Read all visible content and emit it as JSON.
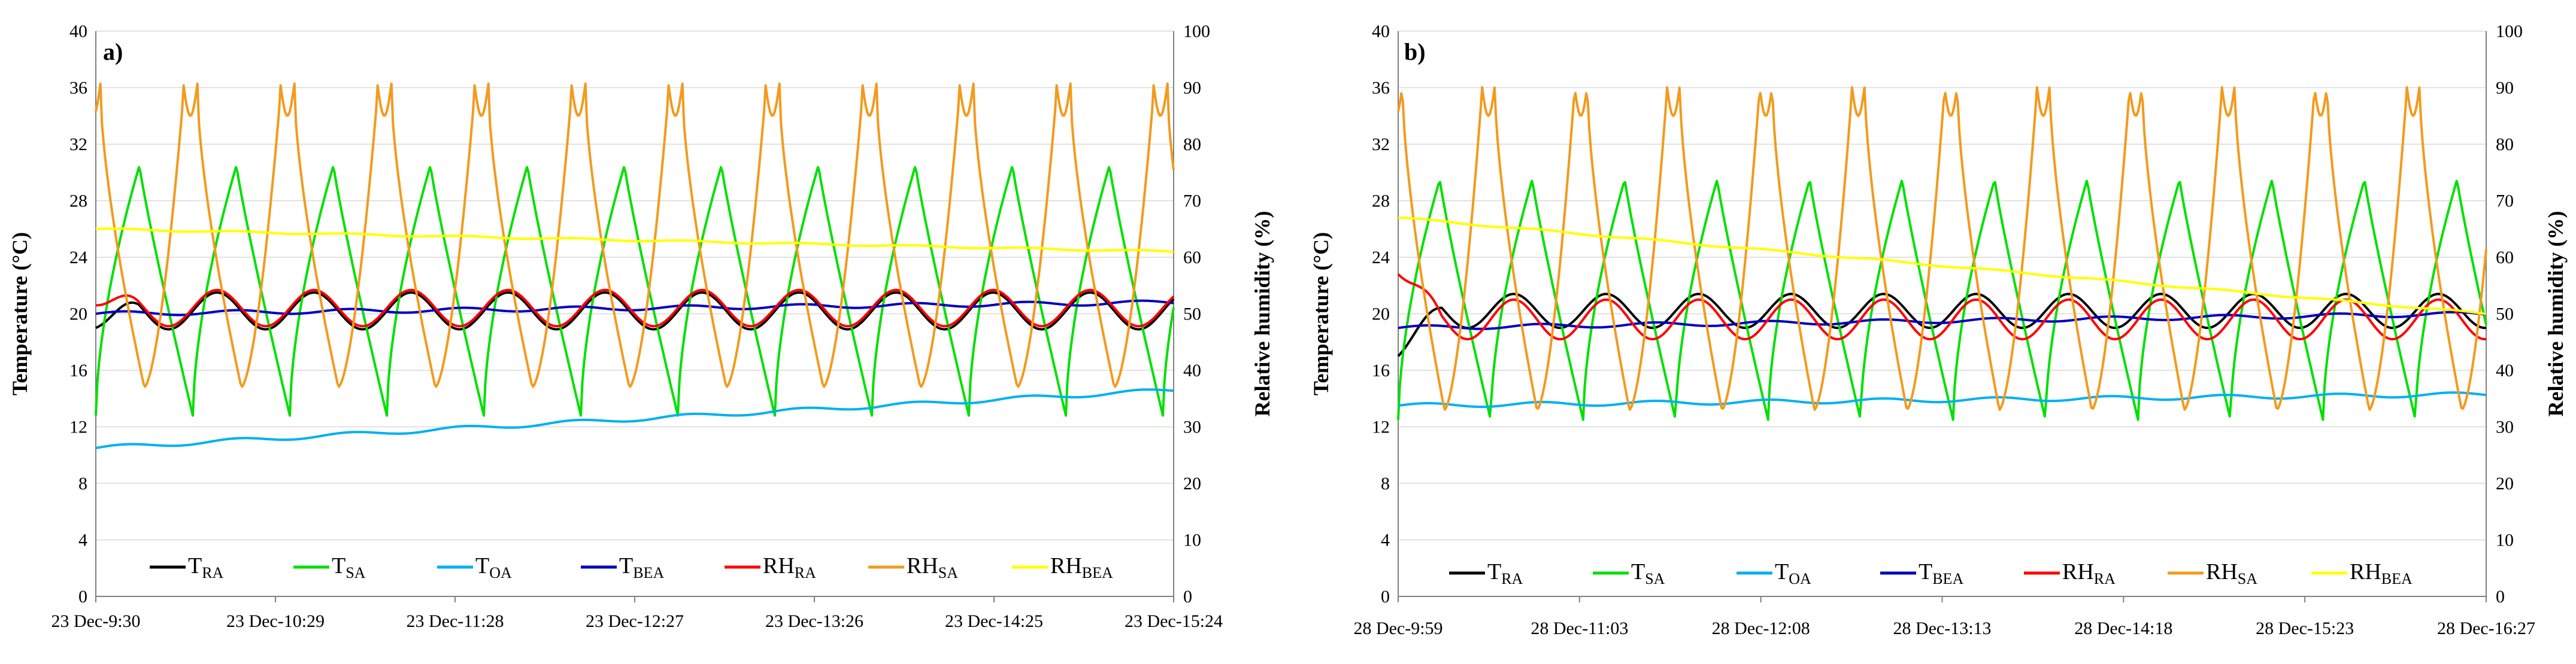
{
  "chart_data": [
    {
      "type": "line",
      "panel": "a)",
      "ylabel_left": "Temperature (°C)",
      "ylabel_right": "Relative humidity (%)",
      "ylim_left": [
        0,
        40
      ],
      "ylim_right": [
        0,
        100
      ],
      "yticks_left": [
        "0",
        "4",
        "8",
        "12",
        "16",
        "20",
        "24",
        "28",
        "32",
        "36",
        "40"
      ],
      "yticks_right": [
        "0",
        "10",
        "20",
        "30",
        "40",
        "50",
        "60",
        "70",
        "80",
        "90",
        "100"
      ],
      "xticks": [
        "23 Dec-9:30",
        "23 Dec-10:29",
        "23 Dec-11:28",
        "23 Dec-12:27",
        "23 Dec-13:26",
        "23 Dec-14:25",
        "23 Dec-15:24"
      ],
      "series": [
        {
          "main": "T",
          "sub": "RA",
          "color": "#000000",
          "axis": "left",
          "kind": "osc",
          "params": {
            "period": 0.09,
            "mean": 20.2,
            "amp": 1.3,
            "start": 19.0
          }
        },
        {
          "main": "T",
          "sub": "SA",
          "color": "#00e000",
          "axis": "left",
          "kind": "saw",
          "params": {
            "period": 0.09,
            "low": 12.8,
            "high": 30.5
          }
        },
        {
          "main": "T",
          "sub": "OA",
          "color": "#00b0f0",
          "axis": "left",
          "kind": "trend",
          "params": {
            "start": 10.5,
            "end": 14.6
          }
        },
        {
          "main": "T",
          "sub": "BEA",
          "color": "#0000c0",
          "axis": "left",
          "kind": "trend",
          "params": {
            "start": 20.0,
            "end": 20.8
          }
        },
        {
          "main": "RH",
          "sub": "RA",
          "color": "#ff0000",
          "axis": "right",
          "kind": "osc",
          "params": {
            "period": 0.09,
            "mean": 51.0,
            "amp": 3.2,
            "start": 51.5
          }
        },
        {
          "main": "RH",
          "sub": "SA",
          "color": "#f39a1e",
          "axis": "right",
          "kind": "rh",
          "params": {
            "period": 0.09,
            "low": 37,
            "high": 88
          }
        },
        {
          "main": "RH",
          "sub": "BEA",
          "color": "#ffff00",
          "axis": "right",
          "kind": "trend",
          "params": {
            "start": 65,
            "end": 61
          }
        }
      ]
    },
    {
      "type": "line",
      "panel": "b)",
      "ylabel_left": "Temperature (°C)",
      "ylabel_right": "Relative humidity (%)",
      "ylim_left": [
        0,
        40
      ],
      "ylim_right": [
        0,
        100
      ],
      "yticks_left": [
        "0",
        "4",
        "8",
        "12",
        "16",
        "20",
        "24",
        "28",
        "32",
        "36",
        "40"
      ],
      "yticks_right": [
        "0",
        "10",
        "20",
        "30",
        "40",
        "50",
        "60",
        "70",
        "80",
        "90",
        "100"
      ],
      "xticks": [
        "28 Dec-9:59",
        "28 Dec-11:03",
        "28 Dec-12:08",
        "28 Dec-13:13",
        "28 Dec-14:18",
        "28 Dec-15:23",
        "28 Dec-16:27"
      ],
      "series": [
        {
          "main": "T",
          "sub": "RA",
          "color": "#000000",
          "axis": "left",
          "kind": "osc",
          "params": {
            "period": 0.085,
            "mean": 20.2,
            "amp": 1.2,
            "start": 17.0
          }
        },
        {
          "main": "T",
          "sub": "SA",
          "color": "#00e000",
          "axis": "left",
          "kind": "saw",
          "params": {
            "period": 0.085,
            "low": 12.5,
            "high": 29.5
          }
        },
        {
          "main": "T",
          "sub": "OA",
          "color": "#00b0f0",
          "axis": "left",
          "kind": "trend",
          "params": {
            "start": 13.5,
            "end": 14.3
          }
        },
        {
          "main": "T",
          "sub": "BEA",
          "color": "#0000c0",
          "axis": "left",
          "kind": "trend",
          "params": {
            "start": 19.0,
            "end": 20.0
          }
        },
        {
          "main": "RH",
          "sub": "RA",
          "color": "#ff0000",
          "axis": "right",
          "kind": "osc",
          "params": {
            "period": 0.085,
            "mean": 49.0,
            "amp": 3.5,
            "start": 57
          }
        },
        {
          "main": "RH",
          "sub": "SA",
          "color": "#f39a1e",
          "axis": "right",
          "kind": "rh",
          "params": {
            "period": 0.085,
            "low": 33,
            "high": 88
          }
        },
        {
          "main": "RH",
          "sub": "BEA",
          "color": "#ffff00",
          "axis": "right",
          "kind": "trend",
          "params": {
            "start": 67,
            "end": 50
          }
        }
      ]
    }
  ]
}
